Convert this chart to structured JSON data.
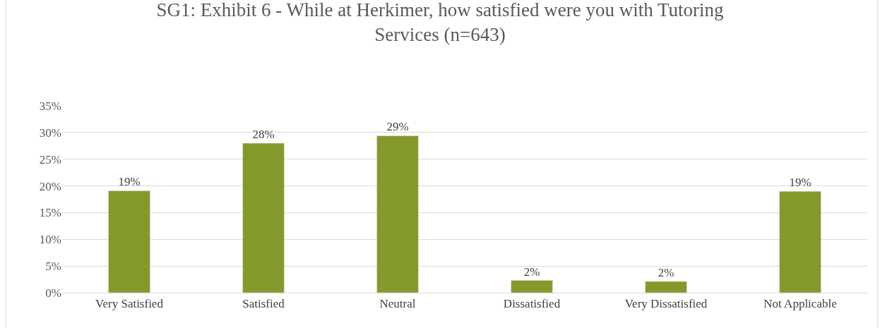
{
  "chart_data": {
    "type": "bar",
    "title": "SG1: Exhibit 6 - While at Herkimer, how satisfied were you with Tutoring Services (n=643)",
    "categories": [
      "Very Satisfied",
      "Satisfied",
      "Neutral",
      "Dissatisfied",
      "Very Dissatisfied",
      "Not Applicable"
    ],
    "values": [
      19.1,
      28,
      29.4,
      2.3,
      2.1,
      19
    ],
    "value_labels": [
      "19%",
      "28%",
      "29%",
      "2%",
      "2%",
      "19%"
    ],
    "color": "#83992b",
    "ylim": [
      0,
      35
    ],
    "yticks": [
      {
        "value": 0,
        "label": "0%"
      },
      {
        "value": 5,
        "label": "5%"
      },
      {
        "value": 10,
        "label": "10%"
      },
      {
        "value": 15,
        "label": "15%"
      },
      {
        "value": 20,
        "label": "20%"
      },
      {
        "value": 25,
        "label": "25%"
      },
      {
        "value": 30,
        "label": "30%"
      },
      {
        "value": 35,
        "label": "35%"
      }
    ],
    "grid": "y",
    "legend": false
  }
}
